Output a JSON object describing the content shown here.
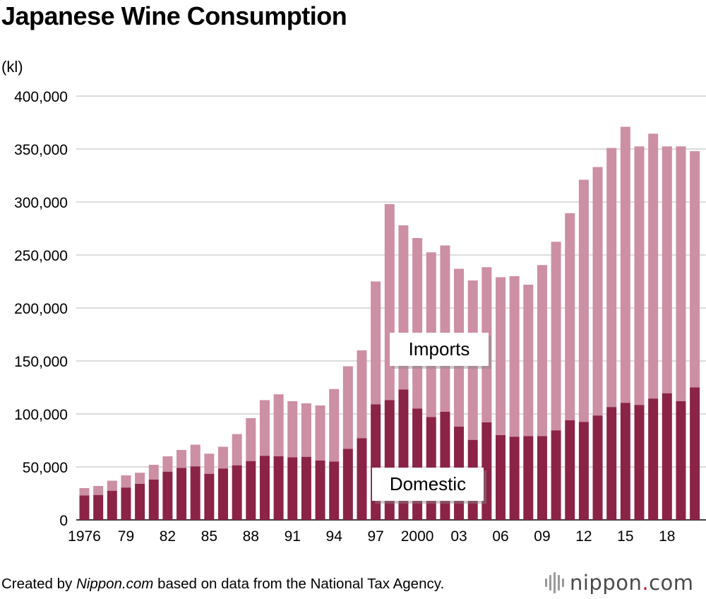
{
  "title": "Japanese Wine Consumption",
  "unit_label": "(kl)",
  "footer": {
    "prefix": "Created by ",
    "source_name": "Nippon.com",
    "suffix": " based on data from the National Tax Agency."
  },
  "logo": {
    "name": "nippon",
    "dot": ".",
    "tld": "com"
  },
  "colors": {
    "domestic": "#8b2346",
    "imports": "#cc8fa3",
    "grid": "#c8c8c8"
  },
  "chart_data": {
    "type": "bar",
    "stacked": true,
    "categories": [
      "1976",
      "1977",
      "1978",
      "1979",
      "1980",
      "1981",
      "1982",
      "1983",
      "1984",
      "1985",
      "1986",
      "1987",
      "1988",
      "1989",
      "1990",
      "1991",
      "1992",
      "1993",
      "1994",
      "1995",
      "1996",
      "1997",
      "1998",
      "1999",
      "2000",
      "2001",
      "2002",
      "2003",
      "2004",
      "2005",
      "2006",
      "2007",
      "2008",
      "2009",
      "2010",
      "2011",
      "2012",
      "2013",
      "2014",
      "2015",
      "2016",
      "2017",
      "2018",
      "2019",
      "2020"
    ],
    "x_tick_labels": [
      {
        "category": "1976",
        "label": "1976"
      },
      {
        "category": "1979",
        "label": "79"
      },
      {
        "category": "1982",
        "label": "82"
      },
      {
        "category": "1985",
        "label": "85"
      },
      {
        "category": "1988",
        "label": "88"
      },
      {
        "category": "1991",
        "label": "91"
      },
      {
        "category": "1994",
        "label": "94"
      },
      {
        "category": "1997",
        "label": "97"
      },
      {
        "category": "2000",
        "label": "2000"
      },
      {
        "category": "2003",
        "label": "03"
      },
      {
        "category": "2006",
        "label": "06"
      },
      {
        "category": "2009",
        "label": "09"
      },
      {
        "category": "2012",
        "label": "12"
      },
      {
        "category": "2015",
        "label": "15"
      },
      {
        "category": "2018",
        "label": "18"
      }
    ],
    "y_ticks": [
      {
        "value": 0,
        "label": "0"
      },
      {
        "value": 50000,
        "label": "50,000"
      },
      {
        "value": 100000,
        "label": "100,000"
      },
      {
        "value": 150000,
        "label": "150,000"
      },
      {
        "value": 200000,
        "label": "200,000"
      },
      {
        "value": 250000,
        "label": "250,000"
      },
      {
        "value": 300000,
        "label": "300,000"
      },
      {
        "value": 350000,
        "label": "350,000"
      },
      {
        "value": 400000,
        "label": "400,000"
      }
    ],
    "ylim": [
      0,
      400000
    ],
    "grid": true,
    "series": [
      {
        "name": "Domestic",
        "values": [
          23000,
          23500,
          27500,
          30500,
          34000,
          38000,
          45500,
          49000,
          50500,
          43500,
          48500,
          51500,
          55500,
          60500,
          60000,
          59000,
          59500,
          56000,
          55000,
          67000,
          77000,
          109000,
          113000,
          123000,
          105000,
          97000,
          102000,
          88000,
          75500,
          92000,
          80000,
          78500,
          79000,
          79000,
          84500,
          94000,
          92500,
          98500,
          106500,
          110500,
          108500,
          114500,
          119500,
          112000,
          125000
        ]
      },
      {
        "name": "Imports",
        "values": [
          7000,
          8500,
          9500,
          11500,
          10500,
          14000,
          14500,
          17000,
          20500,
          19000,
          20500,
          29500,
          40500,
          52500,
          58500,
          53000,
          50500,
          52000,
          68500,
          78000,
          83000,
          116000,
          185000,
          155000,
          161000,
          155500,
          157000,
          149000,
          150500,
          146500,
          149000,
          151500,
          143000,
          161500,
          178000,
          195500,
          228500,
          234500,
          244500,
          260500,
          244000,
          250000,
          233000,
          240500,
          223000
        ]
      }
    ],
    "series_labels": {
      "imports": "Imports",
      "domestic": "Domestic"
    }
  }
}
